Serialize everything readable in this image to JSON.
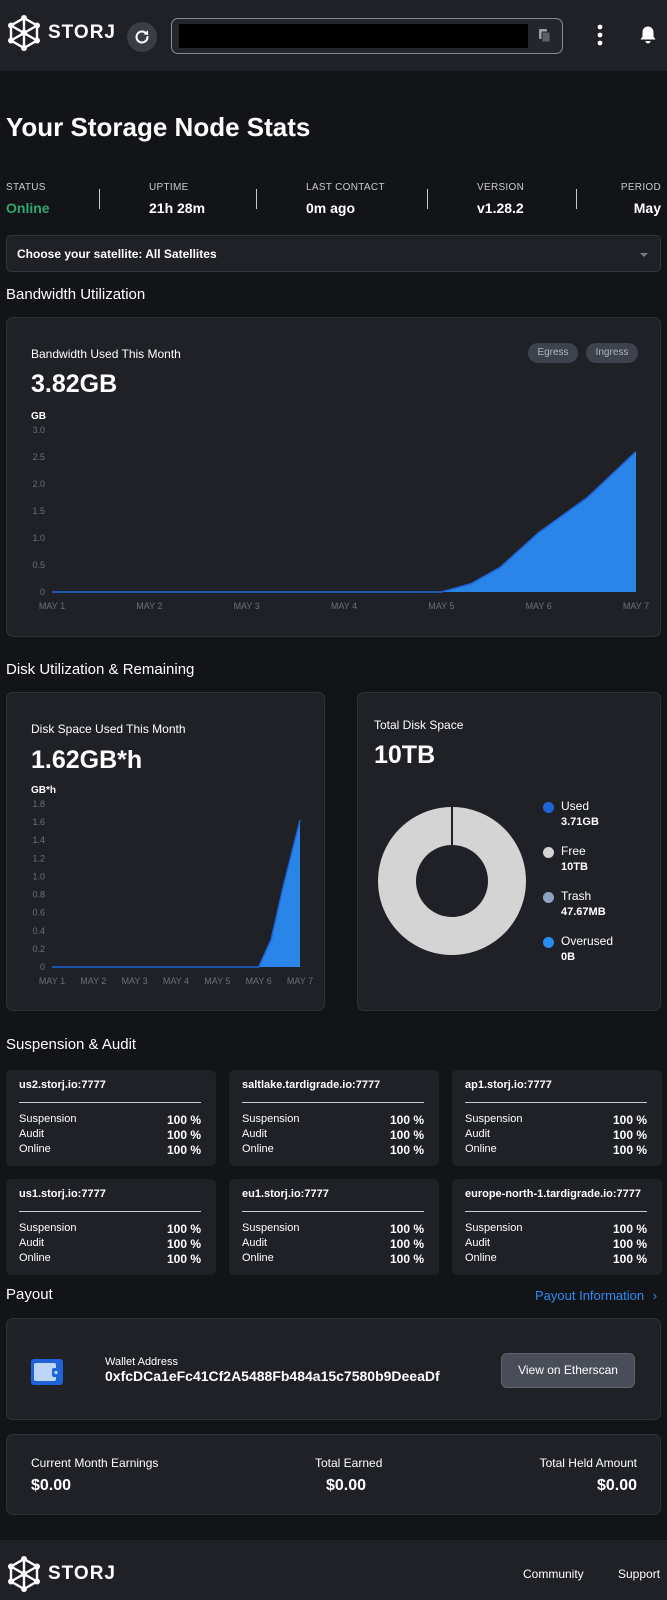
{
  "header": {
    "logo_text": "STORJ",
    "icons": [
      "storj-logo-icon",
      "refresh-icon",
      "copy-icon",
      "more-vertical-icon",
      "bell-icon"
    ]
  },
  "page_title": "Your Storage Node Stats",
  "stats": {
    "status_label": "STATUS",
    "status_value": "Online",
    "uptime_label": "UPTIME",
    "uptime_value": "21h 28m",
    "contact_label": "LAST CONTACT",
    "contact_value": "0m ago",
    "version_label": "VERSION",
    "version_value": "v1.28.2",
    "period_label": "PERIOD",
    "period_value": "May"
  },
  "satellite_select": {
    "label": "Choose your satellite:  All Satellites"
  },
  "bandwidth": {
    "section_title": "Bandwidth Utilization",
    "card_title": "Bandwidth Used This Month",
    "value": "3.82GB",
    "egress_label": "Egress",
    "ingress_label": "Ingress"
  },
  "disk": {
    "section_title": "Disk Utilization & Remaining",
    "card_title": "Disk Space Used This Month",
    "value": "1.62GB*h",
    "total_title": "Total Disk Space",
    "total_value": "10TB",
    "legend": [
      {
        "name": "Used",
        "amount": "3.71GB",
        "color": "#1f64d6"
      },
      {
        "name": "Free",
        "amount": "10TB",
        "color": "#d4d4d4"
      },
      {
        "name": "Trash",
        "amount": "47.67MB",
        "color": "#8ea3c2"
      },
      {
        "name": "Overused",
        "amount": "0B",
        "color": "#2a8bf2"
      }
    ]
  },
  "chart_data": [
    {
      "type": "area",
      "ylabel": "GB",
      "ylim": [
        0,
        3.0
      ],
      "yticks": [
        "0",
        "0.5",
        "1.0",
        "1.5",
        "2.0",
        "2.5",
        "3.0"
      ],
      "categories": [
        "MAY 1",
        "MAY 2",
        "MAY 3",
        "MAY 4",
        "MAY 5",
        "MAY 6",
        "MAY 7"
      ],
      "x": [
        1,
        2,
        3,
        4,
        5,
        5.3,
        5.6,
        6,
        6.5,
        7
      ],
      "values": [
        0,
        0,
        0,
        0,
        0,
        0.15,
        0.45,
        1.1,
        1.75,
        2.6
      ],
      "color": "#2a8bf2"
    },
    {
      "type": "area",
      "ylabel": "GB*h",
      "ylim": [
        0,
        1.8
      ],
      "yticks": [
        "0",
        "0.2",
        "0.4",
        "0.6",
        "0.8",
        "1.0",
        "1.2",
        "1.4",
        "1.6",
        "1.8"
      ],
      "categories": [
        "MAY 1",
        "MAY 2",
        "MAY 3",
        "MAY 4",
        "MAY 5",
        "MAY 6",
        "MAY 7"
      ],
      "x": [
        1,
        2,
        3,
        4,
        5,
        6,
        6.3,
        6.6,
        7
      ],
      "values": [
        0,
        0,
        0,
        0,
        0,
        0,
        0.3,
        0.9,
        1.62
      ],
      "color": "#2a8bf2"
    },
    {
      "type": "pie",
      "categories": [
        "Used",
        "Free",
        "Trash",
        "Overused"
      ],
      "values": [
        3.71,
        10000,
        0.04767,
        0
      ],
      "colors": [
        "#1f64d6",
        "#d4d4d4",
        "#8ea3c2",
        "#2a8bf2"
      ]
    }
  ],
  "audit": {
    "section_title": "Suspension & Audit",
    "suspension_label": "Suspension",
    "audit_label": "Audit",
    "online_label": "Online",
    "satellites": [
      {
        "name": "us2.storj.io:7777",
        "suspension": "100 %",
        "audit": "100 %",
        "online": "100 %"
      },
      {
        "name": "saltlake.tardigrade.io:7777",
        "suspension": "100 %",
        "audit": "100 %",
        "online": "100 %"
      },
      {
        "name": "ap1.storj.io:7777",
        "suspension": "100 %",
        "audit": "100 %",
        "online": "100 %"
      },
      {
        "name": "us1.storj.io:7777",
        "suspension": "100 %",
        "audit": "100 %",
        "online": "100 %"
      },
      {
        "name": "eu1.storj.io:7777",
        "suspension": "100 %",
        "audit": "100 %",
        "online": "100 %"
      },
      {
        "name": "europe-north-1.tardigrade.io:7777",
        "suspension": "100 %",
        "audit": "100 %",
        "online": "100 %"
      }
    ]
  },
  "payout": {
    "section_title": "Payout",
    "info_link": "Payout Information",
    "wallet_label": "Wallet Address",
    "wallet_address": "0xfcDCa1eFc41Cf2A5488Fb484a15c7580b9DeeaDf",
    "etherscan_button": "View on Etherscan",
    "current_label": "Current Month Earnings",
    "current_value": "$0.00",
    "total_label": "Total Earned",
    "total_value": "$0.00",
    "held_label": "Total Held Amount",
    "held_value": "$0.00"
  },
  "footer": {
    "logo_text": "STORJ",
    "community": "Community",
    "support": "Support"
  }
}
